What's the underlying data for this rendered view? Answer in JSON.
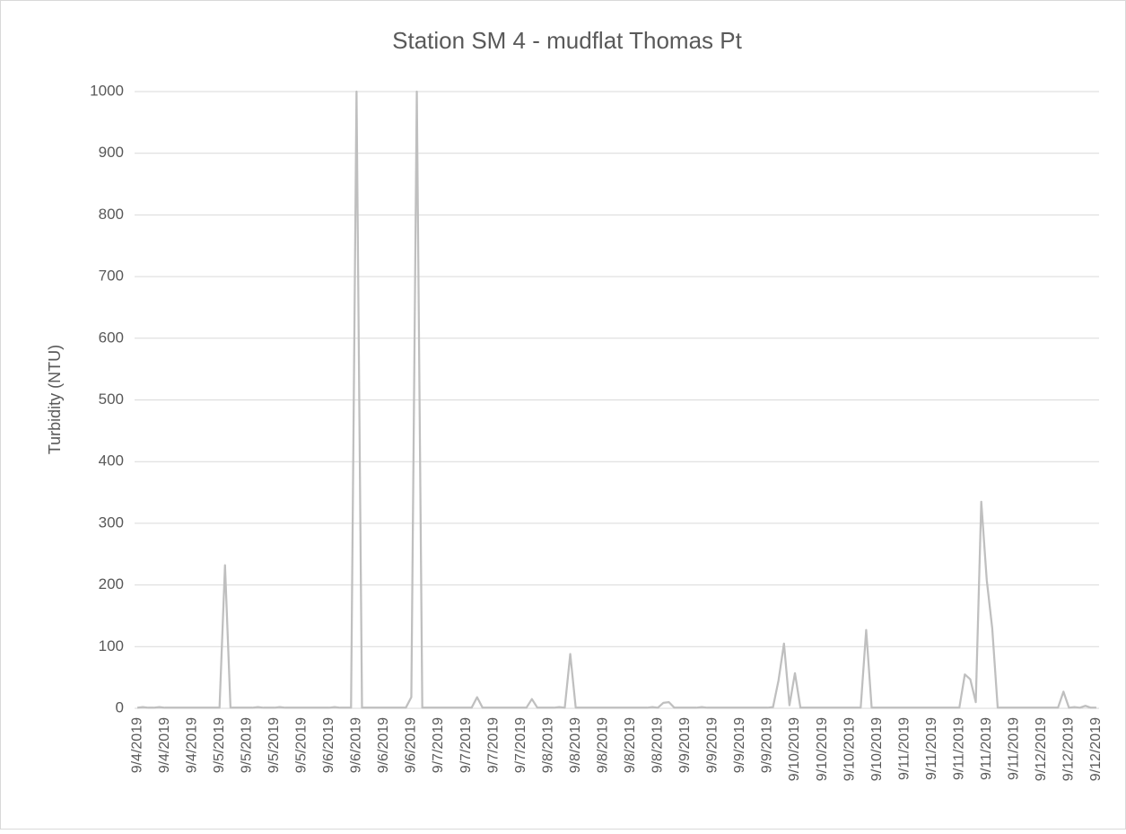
{
  "chart_data": {
    "type": "line",
    "title": "Station SM 4 - mudflat Thomas Pt",
    "y_label": "Turbidity (NTU)",
    "categories": [
      "9/4/2019",
      null,
      null,
      null,
      null,
      "9/4/2019",
      null,
      null,
      null,
      null,
      "9/4/2019",
      null,
      null,
      null,
      null,
      "9/5/2019",
      null,
      null,
      null,
      null,
      "9/5/2019",
      null,
      null,
      null,
      null,
      "9/5/2019",
      null,
      null,
      null,
      null,
      "9/5/2019",
      null,
      null,
      null,
      null,
      "9/6/2019",
      null,
      null,
      null,
      null,
      "9/6/2019",
      null,
      null,
      null,
      null,
      "9/6/2019",
      null,
      null,
      null,
      null,
      "9/6/2019",
      null,
      null,
      null,
      null,
      "9/7/2019",
      null,
      null,
      null,
      null,
      "9/7/2019",
      null,
      null,
      null,
      null,
      "9/7/2019",
      null,
      null,
      null,
      null,
      "9/7/2019",
      null,
      null,
      null,
      null,
      "9/8/2019",
      null,
      null,
      null,
      null,
      "9/8/2019",
      null,
      null,
      null,
      null,
      "9/8/2019",
      null,
      null,
      null,
      null,
      "9/8/2019",
      null,
      null,
      null,
      null,
      "9/8/2019",
      null,
      null,
      null,
      null,
      "9/9/2019",
      null,
      null,
      null,
      null,
      "9/9/2019",
      null,
      null,
      null,
      null,
      "9/9/2019",
      null,
      null,
      null,
      null,
      "9/9/2019",
      null,
      null,
      null,
      null,
      "9/10/2019",
      null,
      null,
      null,
      null,
      "9/10/2019",
      null,
      null,
      null,
      null,
      "9/10/2019",
      null,
      null,
      null,
      null,
      "9/10/2019",
      null,
      null,
      null,
      null,
      "9/11/2019",
      null,
      null,
      null,
      null,
      "9/11/2019",
      null,
      null,
      null,
      null,
      "9/11/2019",
      null,
      null,
      null,
      null,
      "9/11/2019",
      null,
      null,
      null,
      null,
      "9/11/2019",
      null,
      null,
      null,
      null,
      "9/12/2019",
      null,
      null,
      null,
      null,
      "9/12/2019",
      null,
      null,
      null,
      null,
      "9/12/2019"
    ],
    "series": [
      {
        "name": "Turbidity",
        "color": "#bfbfbf",
        "values": [
          1,
          2,
          1,
          1,
          2,
          1,
          1,
          1,
          1,
          1,
          1,
          1,
          1,
          1,
          1,
          1,
          232,
          1,
          1,
          1,
          1,
          1,
          2,
          1,
          1,
          1,
          2,
          1,
          1,
          1,
          1,
          1,
          1,
          1,
          1,
          1,
          2,
          1,
          1,
          1,
          1000,
          1,
          1,
          1,
          1,
          1,
          1,
          1,
          1,
          1,
          18,
          1000,
          1,
          1,
          1,
          1,
          1,
          1,
          1,
          1,
          1,
          1,
          18,
          1,
          1,
          1,
          1,
          1,
          1,
          1,
          1,
          1,
          15,
          1,
          1,
          1,
          1,
          2,
          1,
          88,
          1,
          1,
          1,
          1,
          1,
          1,
          1,
          1,
          1,
          1,
          1,
          1,
          1,
          1,
          2,
          1,
          9,
          10,
          1,
          1,
          1,
          1,
          1,
          2,
          1,
          1,
          1,
          1,
          1,
          1,
          1,
          1,
          1,
          1,
          1,
          1,
          2,
          45,
          105,
          5,
          57,
          1,
          1,
          1,
          1,
          1,
          1,
          1,
          1,
          1,
          1,
          1,
          1,
          127,
          1,
          1,
          1,
          1,
          1,
          1,
          1,
          1,
          1,
          1,
          1,
          1,
          1,
          1,
          1,
          1,
          1,
          55,
          47,
          10,
          335,
          208,
          130,
          1,
          1,
          1,
          1,
          1,
          1,
          1,
          1,
          1,
          1,
          1,
          1,
          27,
          1,
          2,
          1,
          4,
          1,
          1
        ]
      }
    ],
    "ylim": [
      0,
      1000
    ],
    "yticks": [
      0,
      100,
      200,
      300,
      400,
      500,
      600,
      700,
      800,
      900,
      1000
    ],
    "grid": true
  }
}
